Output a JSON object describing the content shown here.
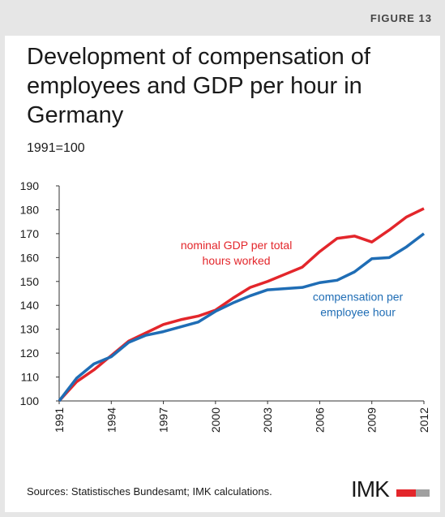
{
  "figure_label": "FIGURE 13",
  "chart_data": {
    "type": "line",
    "title": "Development of compensation of employees and GDP per hour in Germany",
    "subtitle": "1991=100",
    "x": [
      1991,
      1992,
      1993,
      1994,
      1995,
      1996,
      1997,
      1998,
      1999,
      2000,
      2001,
      2002,
      2003,
      2004,
      2005,
      2006,
      2007,
      2008,
      2009,
      2010,
      2011,
      2012
    ],
    "xlim": [
      1991,
      2012
    ],
    "xticks": [
      1991,
      1994,
      1997,
      2000,
      2003,
      2006,
      2009,
      2012
    ],
    "ylim": [
      100,
      190
    ],
    "yticks": [
      100,
      110,
      120,
      130,
      140,
      150,
      160,
      170,
      180,
      190
    ],
    "series": [
      {
        "name": "nominal GDP per total hours worked",
        "color": "#e3262b",
        "values": [
          100,
          108,
          113,
          119,
          125,
          128.5,
          132,
          134,
          135.5,
          138,
          143,
          147.5,
          150,
          153,
          156,
          162.5,
          168,
          169,
          166.5,
          171.5,
          177,
          180.5
        ]
      },
      {
        "name": "compensation per employee hour",
        "color": "#1f6db5",
        "values": [
          100,
          109.5,
          115.5,
          118.5,
          124.5,
          127.5,
          129,
          131,
          133,
          137.5,
          141,
          144,
          146.5,
          147,
          147.5,
          149.5,
          150.5,
          154,
          159.5,
          160,
          164.5,
          170
        ]
      }
    ],
    "annotations": [
      {
        "lines": [
          "nominal GDP per total",
          "hours worked"
        ],
        "series": 0,
        "x": 2001.2,
        "y": 163.5
      },
      {
        "lines": [
          "compensation per",
          "employee hour"
        ],
        "series": 1,
        "x": 2008.2,
        "y": 142
      }
    ],
    "source": "Sources: Statistisches Bundesamt; IMK calculations.",
    "logo": "IMK"
  }
}
